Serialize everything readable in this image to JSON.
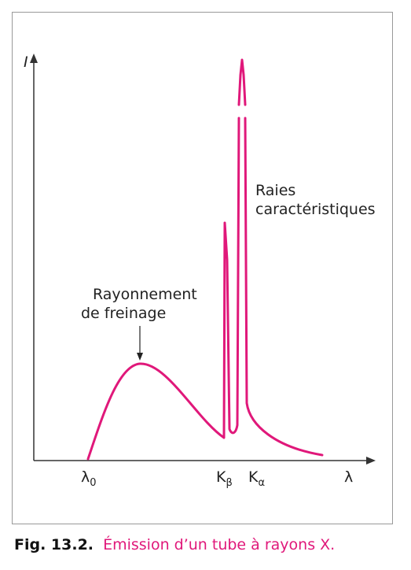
{
  "diagram": {
    "y_axis_label": "I",
    "x_axis_label": "λ",
    "lambda0": {
      "symbol": "λ",
      "sub": "0"
    },
    "k_beta": {
      "symbol": "K",
      "sub": "β"
    },
    "k_alpha": {
      "symbol": "K",
      "sub": "α"
    },
    "annotation_lines": {
      "lines": [
        "Raies",
        "caractéristiques"
      ]
    },
    "annotation_continuum": {
      "lines": [
        "Rayonnement",
        "de freinage"
      ]
    }
  },
  "caption": {
    "number": "Fig. 13.2.",
    "text": "Émission d’un tube à rayons X."
  }
}
